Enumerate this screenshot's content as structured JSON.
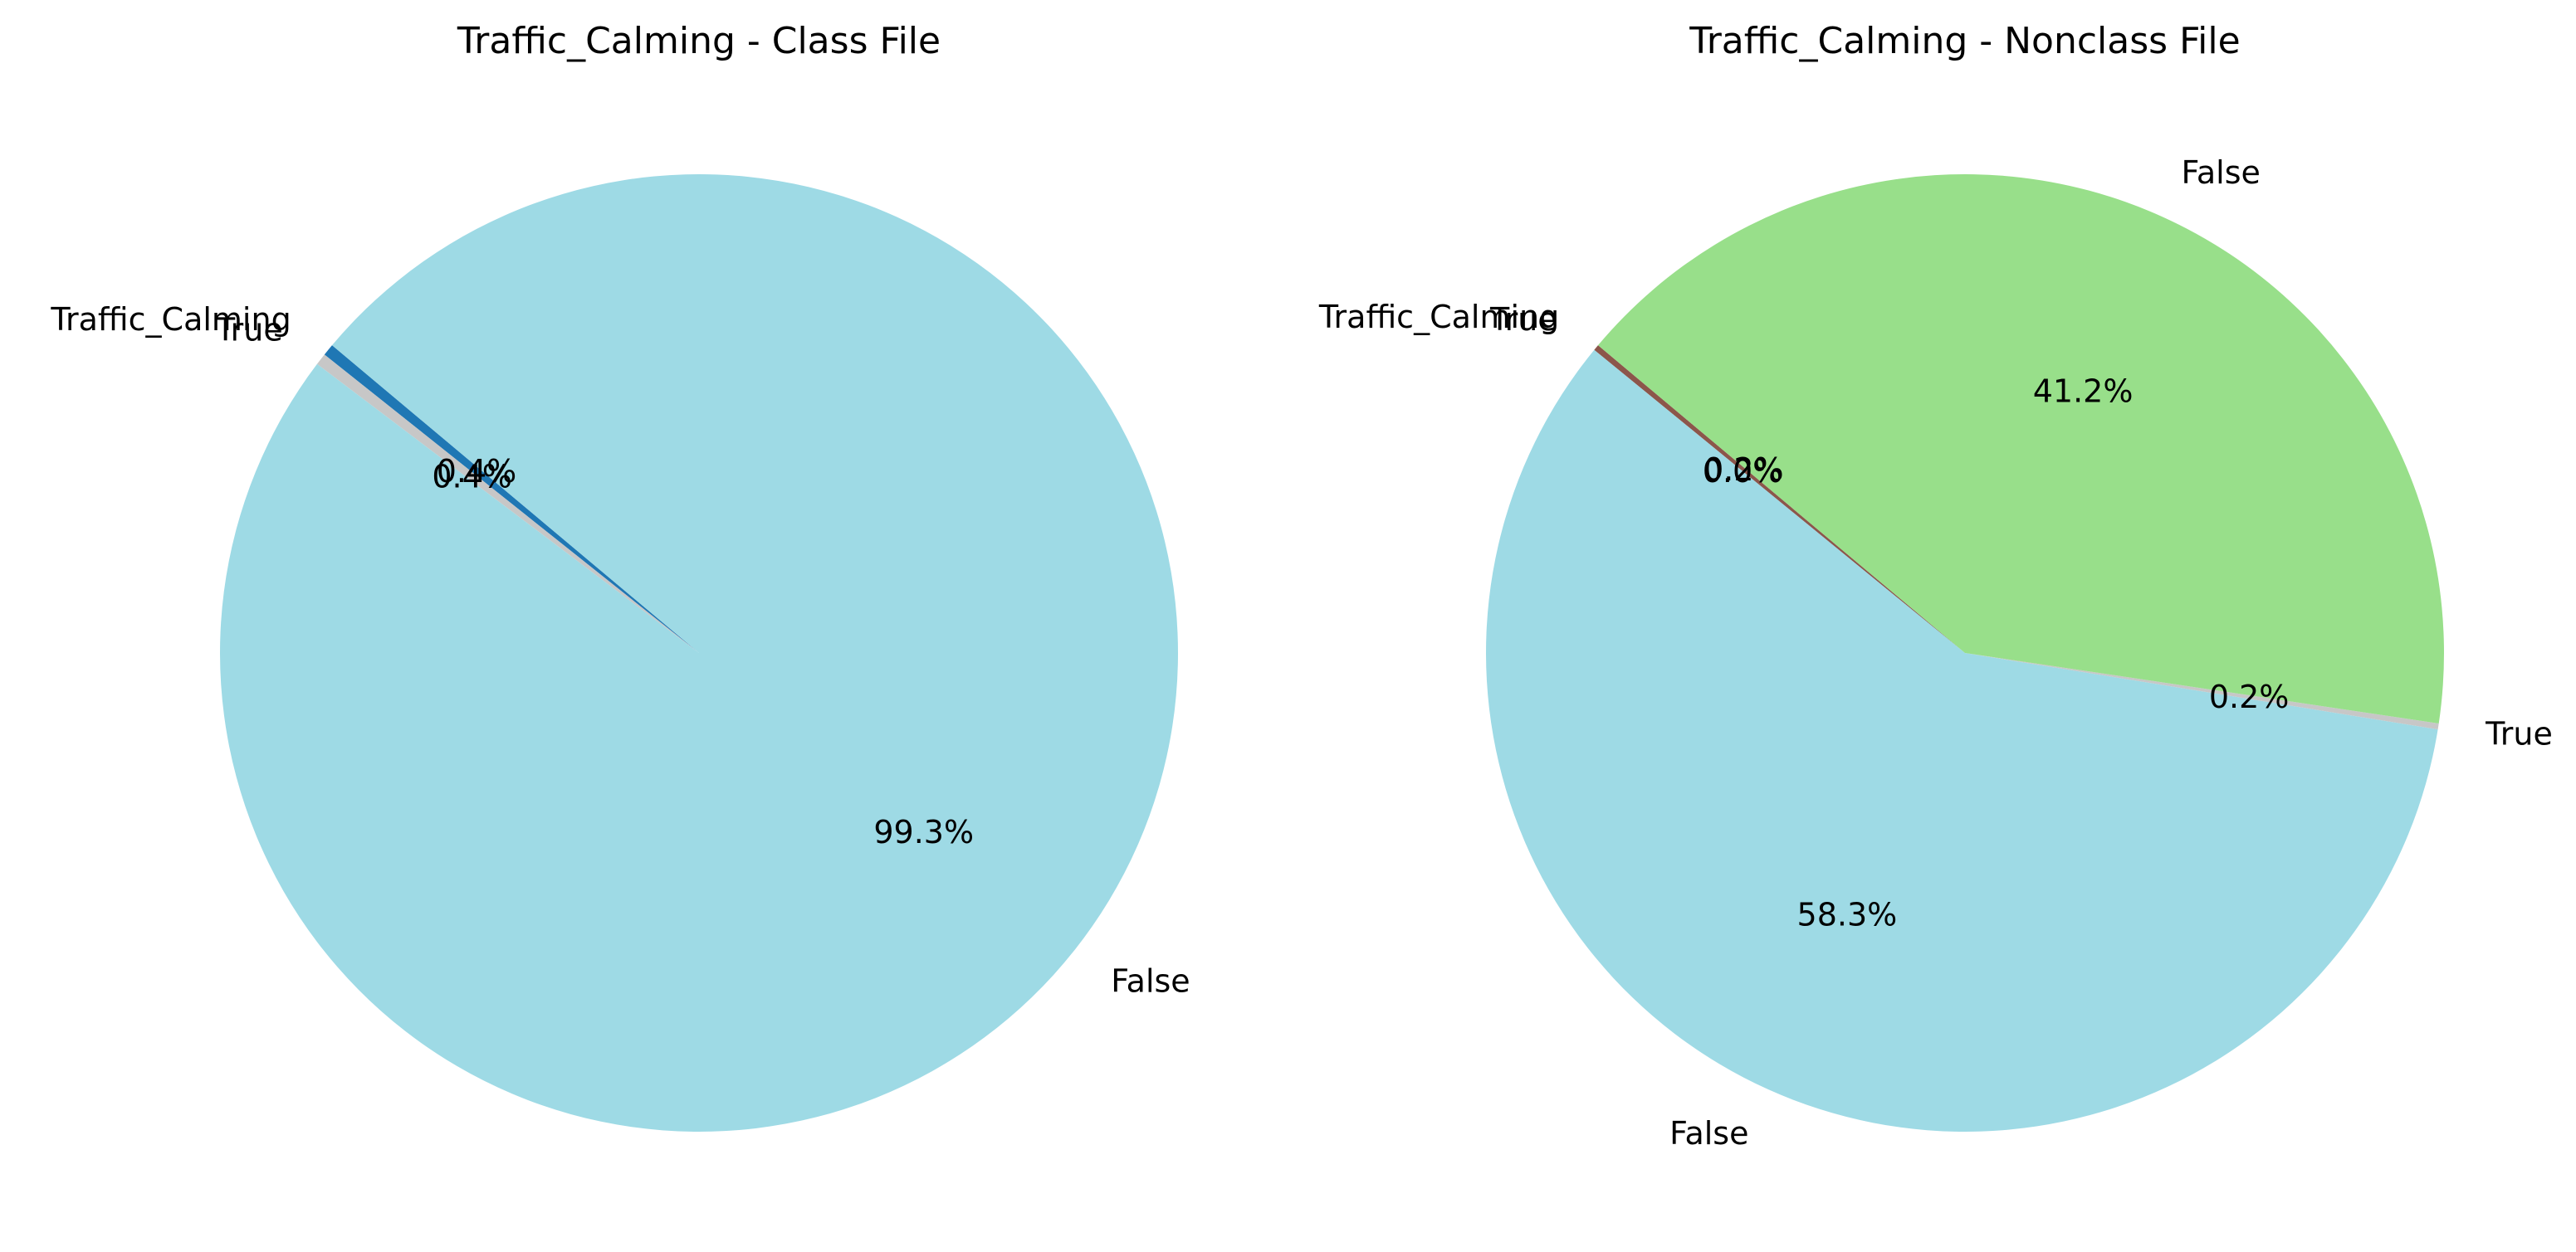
{
  "chart_data": [
    {
      "type": "pie",
      "title": "Traffic_Calming - Class File",
      "start_angle_deg": 140,
      "direction": "counterclockwise",
      "slices": [
        {
          "label": "Traffic_Calming",
          "value": 0.4,
          "pct_label": "0.4%",
          "color": "#1f77b4"
        },
        {
          "label": "True",
          "value": 0.4,
          "pct_label": "0.4%",
          "color": "#c7c7c7"
        },
        {
          "label": "False",
          "value": 99.3,
          "pct_label": "99.3%",
          "color": "#9edae5"
        }
      ]
    },
    {
      "type": "pie",
      "title": "Traffic_Calming - Nonclass File",
      "start_angle_deg": 140,
      "direction": "counterclockwise",
      "slices": [
        {
          "label": "Traffic_Calming",
          "value": 0.2,
          "pct_label": "0.2%",
          "color": "#8c564b"
        },
        {
          "label": "True",
          "value": 0.0,
          "pct_label": "0.0%",
          "color": "#e377c2"
        },
        {
          "label": "False",
          "value": 58.3,
          "pct_label": "58.3%",
          "color": "#9edae5"
        },
        {
          "label": "True",
          "value": 0.2,
          "pct_label": "0.2%",
          "color": "#c7c7c7"
        },
        {
          "label": "False",
          "value": 41.2,
          "pct_label": "41.2%",
          "color": "#98df8a"
        }
      ]
    }
  ]
}
